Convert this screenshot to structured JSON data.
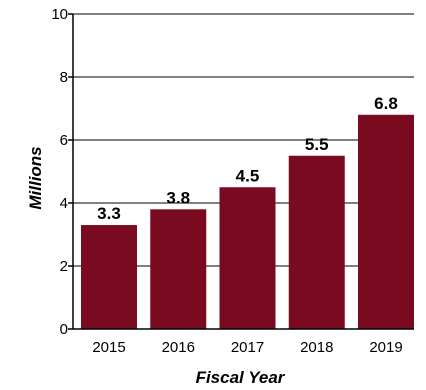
{
  "chart_data": {
    "type": "bar",
    "categories": [
      "2015",
      "2016",
      "2017",
      "2018",
      "2019"
    ],
    "values": [
      3.3,
      3.8,
      4.5,
      5.5,
      6.8
    ],
    "data_labels": [
      "3.3",
      "3.8",
      "4.5",
      "5.5",
      "6.8"
    ],
    "xlabel": "Fiscal Year",
    "ylabel": "Millions",
    "ylim": [
      0,
      10
    ],
    "yticks": [
      0,
      2,
      4,
      6,
      8,
      10
    ],
    "grid": "horizontal",
    "legend": "none",
    "bar_color": "#7a0a1f",
    "grid_color": "#000000"
  }
}
